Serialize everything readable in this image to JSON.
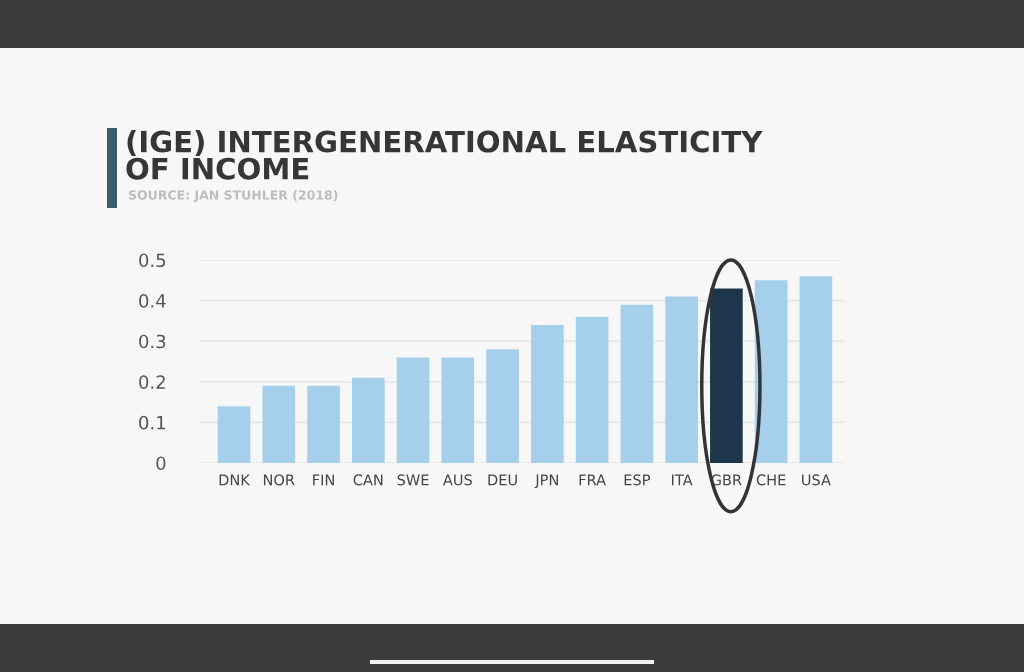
{
  "chart_data": {
    "type": "bar",
    "title": "(IGE) INTERGENERATIONAL ELASTICITY\nOF INCOME",
    "annotations": [
      "SOURCE: JAN STUHLER (2018)"
    ],
    "categories": [
      "DNK",
      "NOR",
      "FIN",
      "CAN",
      "SWE",
      "AUS",
      "DEU",
      "JPN",
      "FRA",
      "ESP",
      "ITA",
      "GBR",
      "CHE",
      "USA"
    ],
    "values": [
      0.14,
      0.19,
      0.19,
      0.21,
      0.26,
      0.26,
      0.28,
      0.34,
      0.36,
      0.39,
      0.41,
      0.43,
      0.45,
      0.46
    ],
    "colors": [
      "#a6cfec",
      "#a6cfec",
      "#a6cfec",
      "#a6cfec",
      "#a6cfec",
      "#a6cfec",
      "#a6cfec",
      "#a6cfec",
      "#a6cfec",
      "#a6cfec",
      "#a6cfec",
      "#1e364c",
      "#a6cfec",
      "#a6cfec"
    ],
    "ylim": [
      0,
      0.5
    ],
    "yticks": [
      0,
      0.1,
      0.2,
      0.3,
      0.4,
      0.5
    ],
    "grid": "y"
  }
}
